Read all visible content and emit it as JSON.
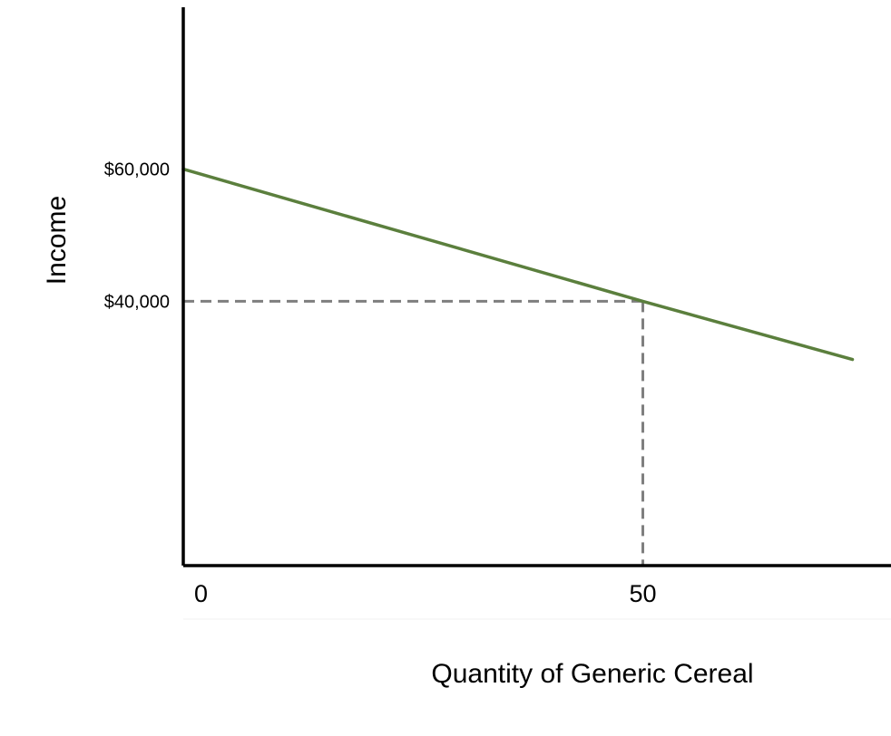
{
  "chart_data": {
    "type": "line",
    "title": "",
    "xlabel": "Quantity of Generic Cereal",
    "ylabel": "Income",
    "x_ticks": [
      {
        "value": 0,
        "label": "0"
      },
      {
        "value": 50,
        "label": "50"
      }
    ],
    "y_ticks": [
      {
        "value": 40000,
        "label": "$40,000"
      },
      {
        "value": 60000,
        "label": "$60,000"
      }
    ],
    "xlim": [
      0,
      77
    ],
    "ylim": [
      0,
      84500
    ],
    "grid": false,
    "series": [
      {
        "color": "#5b7f3d",
        "points": [
          {
            "x": 0,
            "y": 60000
          },
          {
            "x": 50,
            "y": 40000
          },
          {
            "x": 72.8,
            "y": 31200
          }
        ]
      }
    ],
    "reference_lines": {
      "color": "#7f7f7f",
      "point": {
        "x": 50,
        "y": 40000
      }
    }
  }
}
